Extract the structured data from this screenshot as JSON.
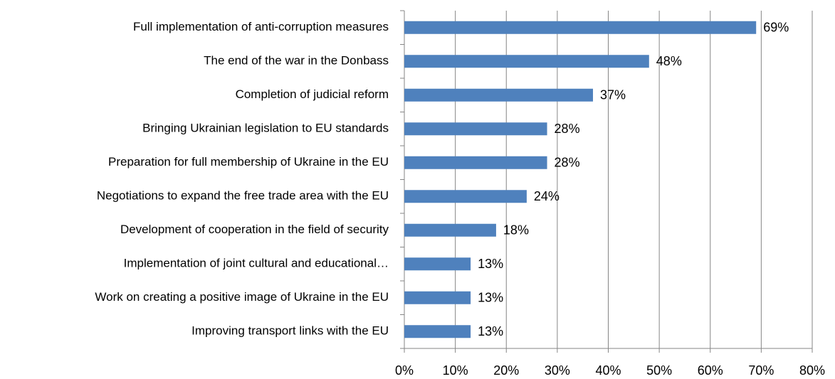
{
  "chart_data": {
    "type": "bar",
    "orientation": "horizontal",
    "categories": [
      "Full implementation of anti-corruption measures",
      "The end of the war in the Donbass",
      "Completion of judicial reform",
      "Bringing Ukrainian legislation to EU standards",
      "Preparation for full membership of Ukraine in the EU",
      "Negotiations to expand the free trade area with the EU",
      "Development of cooperation in the field of security",
      "Implementation of joint cultural and educational…",
      "Work on creating a positive image of Ukraine in the EU",
      "Improving transport links with the EU"
    ],
    "values": [
      69,
      48,
      37,
      28,
      28,
      24,
      18,
      13,
      13,
      13
    ],
    "value_labels": [
      "69%",
      "48%",
      "37%",
      "28%",
      "28%",
      "24%",
      "18%",
      "13%",
      "13%",
      "13%"
    ],
    "color": "#4f81bd",
    "xlim": [
      0,
      80
    ],
    "xticks": [
      {
        "value": 0,
        "label": "0%"
      },
      {
        "value": 10,
        "label": "10%"
      },
      {
        "value": 20,
        "label": "20%"
      },
      {
        "value": 30,
        "label": "30%"
      },
      {
        "value": 40,
        "label": "40%"
      },
      {
        "value": 50,
        "label": "50%"
      },
      {
        "value": 60,
        "label": "60%"
      },
      {
        "value": 70,
        "label": "70%"
      },
      {
        "value": 80,
        "label": "80%"
      }
    ],
    "grid": true
  }
}
